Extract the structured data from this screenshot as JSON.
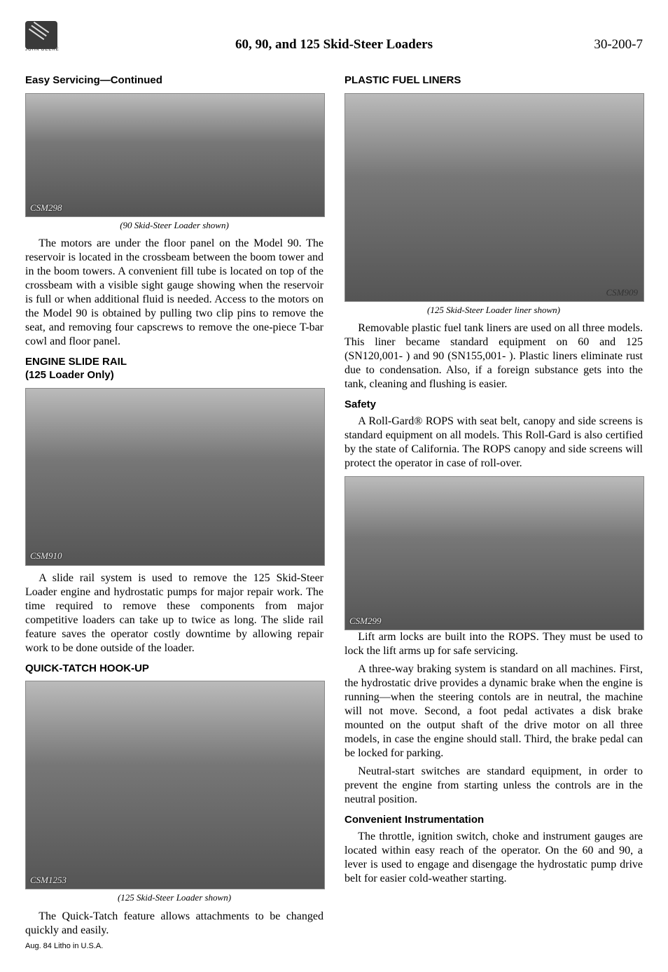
{
  "header": {
    "logo_brand": "JOHN DEERE",
    "title": "60, 90, and 125 Skid-Steer Loaders",
    "page_no": "30-200-7"
  },
  "figures": {
    "f1": {
      "tag": "CSM298",
      "caption": "(90 Skid-Steer Loader shown)"
    },
    "f2": {
      "tag": "CSM910",
      "caption": ""
    },
    "f3": {
      "tag": "CSM1253",
      "caption": "(125 Skid-Steer Loader shown)"
    },
    "f4": {
      "tag": "CSM909",
      "caption": "(125 Skid-Steer Loader liner shown)"
    },
    "f5": {
      "tag": "CSM299",
      "caption": ""
    }
  },
  "left": {
    "h1": "Easy Servicing—Continued",
    "p1": "The motors are under the floor panel on the Model 90. The reservoir is located in the crossbeam between the boom tower and in the boom towers. A convenient fill tube is located on top of the crossbeam with a visible sight gauge showing when the reservoir is full or when additional fluid is needed. Access to the motors on the Model 90 is obtained by pulling two clip pins to remove the seat, and removing four capscrews to remove the one-piece T-bar cowl and floor panel.",
    "h2": "ENGINE SLIDE RAIL",
    "h2b": "(125 Loader Only)",
    "p2": "A slide rail system is used to remove the 125 Skid-Steer Loader engine and hydrostatic pumps for major repair work. The time required to remove these components from major competitive loaders can take up to twice as long. The slide rail feature saves the operator costly downtime by allowing repair work to be done outside of the loader.",
    "h3": "QUICK-TATCH HOOK-UP",
    "p3": "The Quick-Tatch feature allows attachments to be changed quickly and easily.",
    "foot1": "Aug. 84 Litho in U.S.A."
  },
  "right": {
    "h1": "PLASTIC FUEL LINERS",
    "p1": "Removable plastic fuel tank liners are used on all three models. This liner became standard equipment on 60 and 125 (SN120,001-            ) and 90 (SN155,001-            ). Plastic liners eliminate rust due to condensation. Also, if a foreign substance gets into the tank, cleaning and flushing is easier.",
    "h2": "Safety",
    "p2": "A Roll-Gard® ROPS with seat belt, canopy and side screens is standard equipment on all models. This Roll-Gard is also certified by the state of California. The ROPS canopy and side screens will protect the operator in case of roll-over.",
    "p3": "Lift arm locks are built into the ROPS. They must be used to lock the lift arms up for safe servicing.",
    "p4": "A three-way braking system is standard on all machines. First, the hydrostatic drive provides a dynamic brake when the engine is running—when the steering contols are in neutral, the machine will not move. Second, a foot pedal activates a disk brake mounted on the output shaft of the drive motor on all three models, in case the engine should stall. Third, the brake pedal can be locked for parking.",
    "p5": "Neutral-start switches are standard equipment, in order to prevent the engine from starting unless the controls are in the neutral position.",
    "h3": "Convenient Instrumentation",
    "p6": "The throttle, ignition switch, choke and instrument gauges are located within easy reach of the operator. On the 60 and 90, a lever is used to engage and disengage the hydrostatic pump drive belt for easier cold-weather starting."
  }
}
